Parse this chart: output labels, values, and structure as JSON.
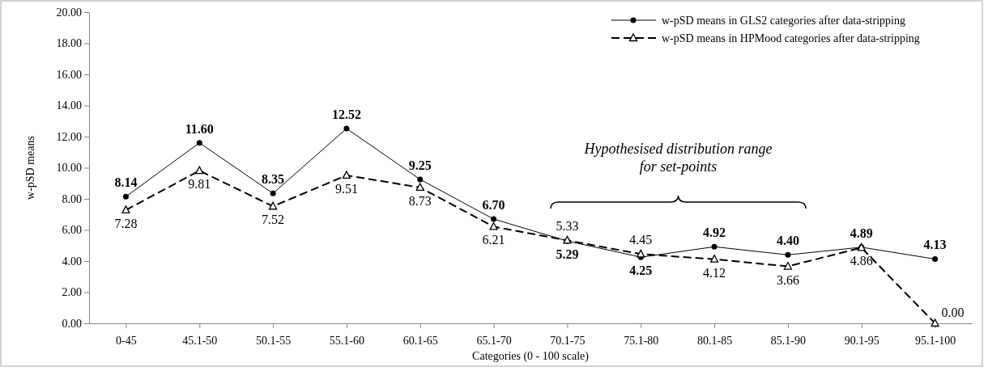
{
  "chart_data": {
    "type": "line",
    "xlabel": "Categories (0 - 100 scale)",
    "ylabel": "w-pSD means",
    "categories": [
      "0-45",
      "45.1-50",
      "50.1-55",
      "55.1-60",
      "60.1-65",
      "65.1-70",
      "70.1-75",
      "75.1-80",
      "80.1-85",
      "85.1-90",
      "90.1-95",
      "95.1-100"
    ],
    "ylim": [
      0,
      20
    ],
    "yticks": [
      {
        "value": 0,
        "label": "0.00"
      },
      {
        "value": 2,
        "label": "2.00"
      },
      {
        "value": 4,
        "label": "4.00"
      },
      {
        "value": 6,
        "label": "6.00"
      },
      {
        "value": 8,
        "label": "8.00"
      },
      {
        "value": 10,
        "label": "10.00"
      },
      {
        "value": 12,
        "label": "12.00"
      },
      {
        "value": 14,
        "label": "14.00"
      },
      {
        "value": 16,
        "label": "16.00"
      },
      {
        "value": 18,
        "label": "18.00"
      },
      {
        "value": 20,
        "label": "20.00"
      }
    ],
    "legend": "top right",
    "series": [
      {
        "name": "w-pSD means in GLS2 categories after data-stripping",
        "color": "#000000",
        "marker": "circle",
        "line_style": "solid",
        "values": [
          8.14,
          11.6,
          8.35,
          12.52,
          9.25,
          6.7,
          5.29,
          4.25,
          4.92,
          4.4,
          4.89,
          4.13
        ],
        "value_labels": [
          "8.14",
          "11.60",
          "8.35",
          "12.52",
          "9.25",
          "6.70",
          "5.29",
          "4.25",
          "4.92",
          "4.40",
          "4.89",
          "4.13"
        ]
      },
      {
        "name": "w-pSD means in HPMood categories after data-stripping",
        "color": "#000000",
        "marker": "triangle",
        "line_style": "dashed",
        "values": [
          7.28,
          9.81,
          7.52,
          9.51,
          8.73,
          6.21,
          5.33,
          4.45,
          4.12,
          3.66,
          4.86,
          0
        ],
        "value_labels": [
          "7.28",
          "9.81",
          "7.52",
          "9.51",
          "8.73",
          "6.21",
          "5.33",
          "4.45",
          "4.12",
          "3.66",
          "4.86",
          "0.00"
        ]
      }
    ],
    "annotations": [
      "Hypothesised distribution range\nfor set-points"
    ]
  }
}
